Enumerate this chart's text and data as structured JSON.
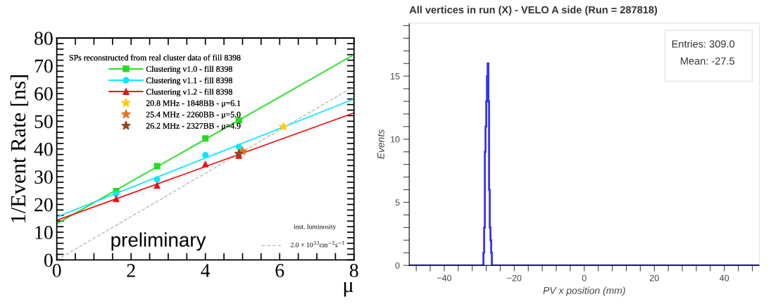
{
  "chart_data": [
    {
      "type": "line",
      "xlabel": "μ",
      "ylabel": "1/Event Rate [ns]",
      "legend_title": "SPs reconstructed from real cluster data of fill 8398",
      "legend": "top left",
      "xlim": [
        0,
        8
      ],
      "ylim": [
        0,
        80
      ],
      "xticks": [
        0,
        {
          "value": 0.5,
          "label": null
        },
        {
          "value": 1,
          "label": null
        },
        {
          "value": 1.5,
          "label": null
        },
        2,
        {
          "value": 2.5,
          "label": null
        },
        {
          "value": 3,
          "label": null
        },
        {
          "value": 3.5,
          "label": null
        },
        4,
        {
          "value": 4.5,
          "label": null
        },
        {
          "value": 5,
          "label": null
        },
        {
          "value": 5.5,
          "label": null
        },
        6,
        {
          "value": 6.5,
          "label": null
        },
        {
          "value": 7,
          "label": null
        },
        {
          "value": 7.5,
          "label": null
        },
        8
      ],
      "yticks": [
        0,
        {
          "value": 2,
          "label": null
        },
        {
          "value": 4,
          "label": null
        },
        {
          "value": 6,
          "label": null
        },
        {
          "value": 8,
          "label": null
        },
        10,
        {
          "value": 12,
          "label": null
        },
        {
          "value": 14,
          "label": null
        },
        {
          "value": 16,
          "label": null
        },
        {
          "value": 18,
          "label": null
        },
        20,
        {
          "value": 22,
          "label": null
        },
        {
          "value": 24,
          "label": null
        },
        {
          "value": 26,
          "label": null
        },
        {
          "value": 28,
          "label": null
        },
        30,
        {
          "value": 32,
          "label": null
        },
        {
          "value": 34,
          "label": null
        },
        {
          "value": 36,
          "label": null
        },
        {
          "value": 38,
          "label": null
        },
        40,
        {
          "value": 42,
          "label": null
        },
        {
          "value": 44,
          "label": null
        },
        {
          "value": 46,
          "label": null
        },
        {
          "value": 48,
          "label": null
        },
        50,
        {
          "value": 52,
          "label": null
        },
        {
          "value": 54,
          "label": null
        },
        {
          "value": 56,
          "label": null
        },
        {
          "value": 58,
          "label": null
        },
        60,
        {
          "value": 62,
          "label": null
        },
        {
          "value": 64,
          "label": null
        },
        {
          "value": 66,
          "label": null
        },
        {
          "value": 68,
          "label": null
        },
        70,
        {
          "value": 72,
          "label": null
        },
        {
          "value": 74,
          "label": null
        },
        {
          "value": 76,
          "label": null
        },
        {
          "value": 78,
          "label": null
        },
        80
      ],
      "annotations": [
        "preliminary",
        "inst. luminosity",
        "2.0 × 10$^{33}$cm$^{−2}$s$^{−1}$"
      ],
      "series": [
        {
          "type": "line",
          "color": "#bbbbbb",
          "line_style": "dashed",
          "x": [
            0,
            8
          ],
          "values": [
            0,
            62.5
          ]
        },
        {
          "type": "line",
          "color": "#22dd22",
          "x": [
            0,
            8
          ],
          "values": [
            13,
            74
          ]
        },
        {
          "type": "line",
          "color": "#11e5ff",
          "x": [
            0,
            8
          ],
          "values": [
            15.5,
            58
          ]
        },
        {
          "type": "line",
          "color": "#ee1111",
          "x": [
            0,
            8
          ],
          "values": [
            14.3,
            53
          ]
        },
        {
          "type": "scatter",
          "name": "Clustering v1.0 - fill 8398",
          "color": "#22dd22",
          "marker": "square",
          "line_style": "solid",
          "x": [
            1.6,
            2.7,
            4.0,
            4.9
          ],
          "values": [
            24.8,
            33.8,
            43.8,
            50.3
          ]
        },
        {
          "type": "scatter",
          "name": "Clustering v1.1 - fill 8398",
          "color": "#11e5ff",
          "marker": "circle",
          "line_style": "solid",
          "x": [
            1.6,
            2.7,
            4.0,
            4.9
          ],
          "values": [
            23.8,
            29.0,
            37.8,
            40.8
          ]
        },
        {
          "type": "scatter",
          "name": "Clustering v1.2 - fill 8398",
          "color": "#ee1111",
          "marker": "triangle",
          "line_style": "solid",
          "x": [
            1.6,
            2.7,
            4.0,
            4.9
          ],
          "values": [
            22.0,
            26.8,
            34.5,
            37.6
          ]
        },
        {
          "type": "scatter",
          "name": "20.8 MHz - 1848BB - μ=6.1",
          "color": "#ffcc11",
          "marker": "star",
          "x": [
            6.1
          ],
          "values": [
            48.0
          ]
        },
        {
          "type": "scatter",
          "name": "25.4 MHz - 2260BB - μ=5.0",
          "color": "#dd7722",
          "marker": "star",
          "x": [
            5.0
          ],
          "values": [
            39.2
          ]
        },
        {
          "type": "scatter",
          "name": "26.2 MHz - 2327BB - μ=4.9",
          "color": "#994422",
          "marker": "star",
          "x": [
            4.9
          ],
          "values": [
            38.3
          ]
        }
      ]
    },
    {
      "type": "histogram",
      "title": "All vertices in run (X) - VELO A side (Run = 287818)",
      "xlabel": "PV x position (mm)",
      "ylabel": "Events",
      "color": "#3333ff",
      "xlim": [
        -50,
        50
      ],
      "ylim": [
        0,
        19.2
      ],
      "xticks": [
        {
          "value": -48,
          "label": null
        },
        {
          "value": -44,
          "label": null
        },
        {
          "value": -40,
          "label": "−40"
        },
        {
          "value": -36,
          "label": null
        },
        {
          "value": -32,
          "label": null
        },
        {
          "value": -28,
          "label": null
        },
        {
          "value": -24,
          "label": null
        },
        {
          "value": -20,
          "label": "−20"
        },
        {
          "value": -16,
          "label": null
        },
        {
          "value": -12,
          "label": null
        },
        {
          "value": -8,
          "label": null
        },
        {
          "value": -4,
          "label": null
        },
        0,
        {
          "value": 4,
          "label": null
        },
        {
          "value": 8,
          "label": null
        },
        {
          "value": 12,
          "label": null
        },
        {
          "value": 16,
          "label": null
        },
        20,
        {
          "value": 24,
          "label": null
        },
        {
          "value": 28,
          "label": null
        },
        {
          "value": 32,
          "label": null
        },
        {
          "value": 36,
          "label": null
        },
        40,
        {
          "value": 44,
          "label": null
        },
        {
          "value": 48,
          "label": null
        }
      ],
      "yticks": [
        0,
        {
          "value": 1,
          "label": null
        },
        {
          "value": 2,
          "label": null
        },
        {
          "value": 3,
          "label": null
        },
        {
          "value": 4,
          "label": null
        },
        5,
        {
          "value": 6,
          "label": null
        },
        {
          "value": 7,
          "label": null
        },
        {
          "value": 8,
          "label": null
        },
        {
          "value": 9,
          "label": null
        },
        10,
        {
          "value": 11,
          "label": null
        },
        {
          "value": 12,
          "label": null
        },
        {
          "value": 13,
          "label": null
        },
        {
          "value": 14,
          "label": null
        },
        15,
        {
          "value": 16,
          "label": null
        },
        {
          "value": 17,
          "label": null
        },
        {
          "value": 18,
          "label": null
        },
        {
          "value": 19,
          "label": null
        }
      ],
      "annotations": [
        "Entries: 309.0",
        "Mean: -27.5"
      ],
      "bins": [
        -50,
        -28.8,
        -28.6,
        -28.4,
        -28.2,
        -28.0,
        -27.8,
        -27.6,
        -27.4,
        -27.2,
        -27.0,
        -26.8,
        -26.6,
        -26.4,
        50
      ],
      "values": [
        0,
        1,
        3,
        9,
        11,
        13,
        15,
        16,
        13,
        6,
        3,
        2,
        1,
        0
      ]
    }
  ]
}
